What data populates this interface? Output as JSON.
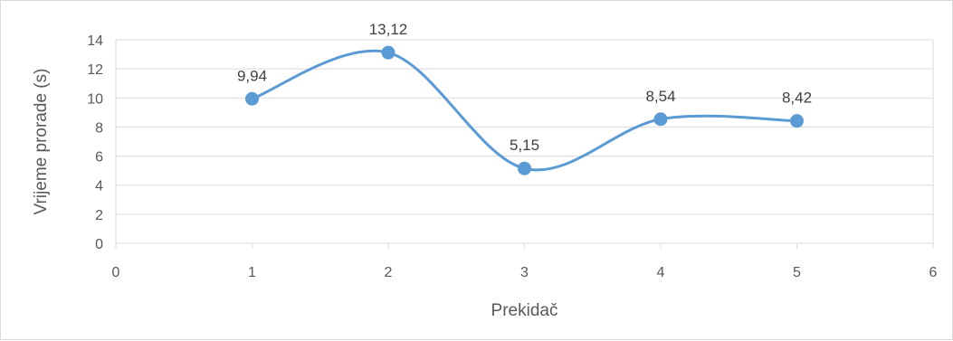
{
  "chart_data": {
    "type": "scatter",
    "style": "smoothed-line-with-markers",
    "title": "",
    "xlabel": "Prekidač",
    "ylabel": "Vrijeme prorade  (s)",
    "xlim": [
      0,
      6
    ],
    "ylim": [
      0,
      14
    ],
    "x_ticks": [
      0,
      1,
      2,
      3,
      4,
      5,
      6
    ],
    "y_ticks": [
      0,
      2,
      4,
      6,
      8,
      10,
      12,
      14
    ],
    "grid": "horizontal",
    "legend": "none",
    "series": [
      {
        "x": [
          1,
          2,
          3,
          4,
          5
        ],
        "y": [
          9.94,
          13.12,
          5.15,
          8.54,
          8.42
        ],
        "labels": [
          "9,94",
          "13,12",
          "5,15",
          "8,54",
          "8,42"
        ],
        "color": "#5b9bd5"
      }
    ],
    "colors": {
      "series": "#5b9bd5",
      "grid": "#d9d9d9",
      "text": "#595959",
      "data_label": "#404040"
    }
  }
}
